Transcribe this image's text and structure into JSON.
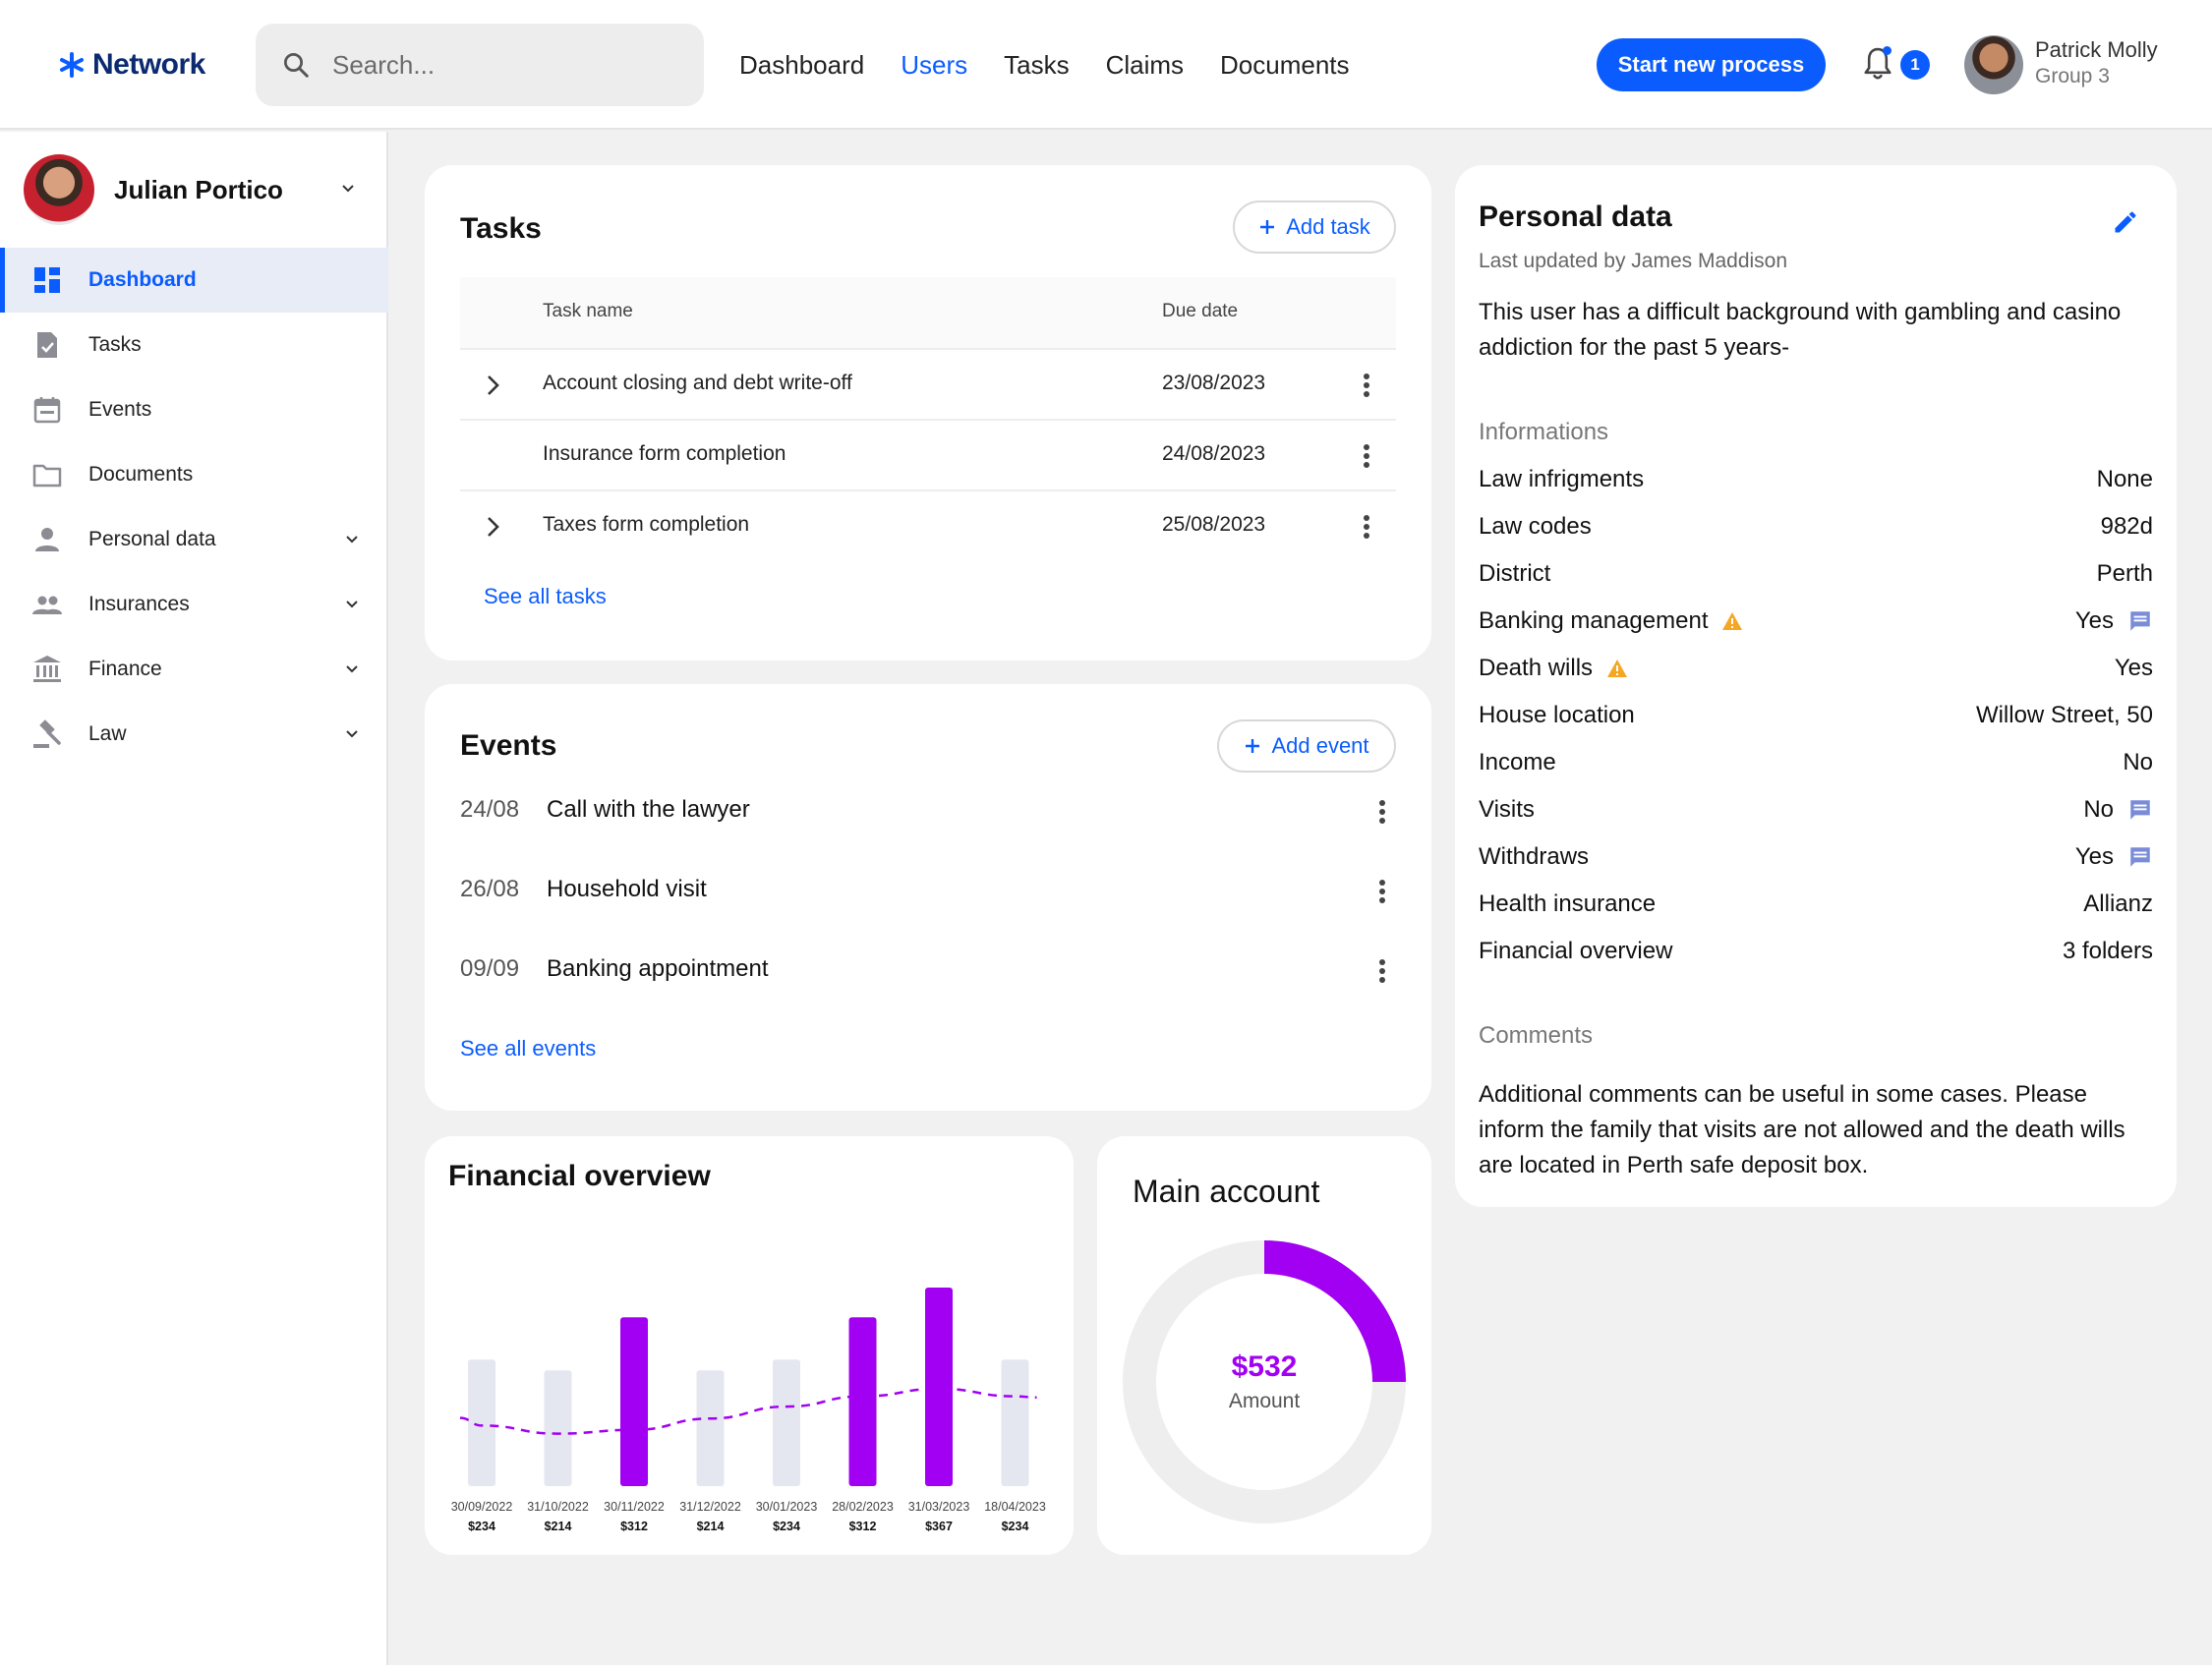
{
  "app": {
    "brand": "Network"
  },
  "search": {
    "placeholder": "Search..."
  },
  "topnav": {
    "items": [
      {
        "label": "Dashboard"
      },
      {
        "label": "Users",
        "active": true
      },
      {
        "label": "Tasks"
      },
      {
        "label": "Claims"
      },
      {
        "label": "Documents"
      }
    ],
    "cta_label": "Start new process",
    "notification_count": "1"
  },
  "current_user": {
    "name": "Patrick Molly",
    "group": "Group 3"
  },
  "sidebar": {
    "profile_name": "Julian Portico",
    "items": [
      {
        "label": "Dashboard",
        "icon": "dashboard-icon",
        "active": true
      },
      {
        "label": "Tasks",
        "icon": "task-icon"
      },
      {
        "label": "Events",
        "icon": "calendar-icon"
      },
      {
        "label": "Documents",
        "icon": "folder-icon"
      },
      {
        "label": "Personal data",
        "icon": "person-icon",
        "expandable": true
      },
      {
        "label": "Insurances",
        "icon": "group-icon",
        "expandable": true
      },
      {
        "label": "Finance",
        "icon": "bank-icon",
        "expandable": true
      },
      {
        "label": "Law",
        "icon": "gavel-icon",
        "expandable": true
      }
    ]
  },
  "tasks": {
    "title": "Tasks",
    "add_label": "Add task",
    "col_name": "Task name",
    "col_due": "Due date",
    "rows": [
      {
        "name": "Account closing and debt write-off",
        "due": "23/08/2023",
        "expandable": true
      },
      {
        "name": "Insurance form completion",
        "due": "24/08/2023",
        "expandable": false
      },
      {
        "name": "Taxes form completion",
        "due": "25/08/2023",
        "expandable": true
      }
    ],
    "see_all": "See all tasks"
  },
  "events": {
    "title": "Events",
    "add_label": "Add event",
    "items": [
      {
        "date": "24/08",
        "title": "Call with the lawyer"
      },
      {
        "date": "26/08",
        "title": "Household visit"
      },
      {
        "date": "09/09",
        "title": "Banking appointment"
      }
    ],
    "see_all": "See all events"
  },
  "financial": {
    "title": "Financial overview"
  },
  "chart_data": {
    "type": "bar",
    "categories": [
      "30/09/2022",
      "31/10/2022",
      "30/11/2022",
      "31/12/2022",
      "30/01/2023",
      "28/02/2023",
      "31/03/2023",
      "18/04/2023"
    ],
    "values": [
      234,
      214,
      312,
      214,
      234,
      312,
      367,
      234
    ],
    "value_labels": [
      "$234",
      "$214",
      "$312",
      "$214",
      "$234",
      "$312",
      "$367",
      "$234"
    ],
    "highlighted": [
      false,
      false,
      true,
      false,
      false,
      true,
      true,
      false
    ],
    "trend": [
      112,
      97,
      104,
      125,
      147,
      166,
      180,
      166
    ],
    "colors": {
      "highlight": "#A100F2",
      "muted": "#E5E7F0",
      "trend": "#A100F2"
    },
    "title": "Financial overview",
    "xlabel": "",
    "ylabel": "",
    "grid": false
  },
  "main_account": {
    "title": "Main account",
    "amount": "$532",
    "amount_label": "Amount",
    "fraction": 0.25,
    "colors": {
      "fill": "#A100F2",
      "track": "#EEEEEF"
    }
  },
  "personal_data": {
    "title": "Personal data",
    "updated": "Last updated by James Maddison",
    "description": "This user has a difficult background with gambling and casino addiction for the past 5 years-",
    "info_heading": "Informations",
    "rows": [
      {
        "key": "Law infrigments",
        "value": "None"
      },
      {
        "key": "Law codes",
        "value": "982d"
      },
      {
        "key": "District",
        "value": "Perth"
      },
      {
        "key": "Banking management",
        "value": "Yes",
        "warning": true,
        "comment": true
      },
      {
        "key": "Death wills",
        "value": "Yes",
        "warning": true
      },
      {
        "key": "House location",
        "value": "Willow Street, 50"
      },
      {
        "key": "Income",
        "value": "No"
      },
      {
        "key": "Visits",
        "value": "No",
        "comment": true
      },
      {
        "key": "Withdraws",
        "value": "Yes",
        "comment": true
      },
      {
        "key": "Health insurance",
        "value": "Allianz"
      },
      {
        "key": "Financial overview",
        "value": "3 folders"
      }
    ],
    "comments_heading": "Comments",
    "comments": "Additional comments can be useful in some cases. Please inform the family that visits are not allowed and the death wills are located in Perth safe deposit box."
  },
  "theme": {
    "accent": "#0A5CFF",
    "warning": "#F5A623",
    "chart_purple": "#A100F2"
  }
}
